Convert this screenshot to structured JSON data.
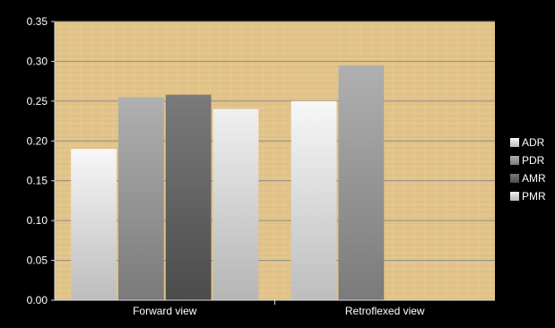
{
  "chart_data": {
    "type": "bar",
    "title": "",
    "xlabel": "",
    "ylabel": "",
    "categories": [
      "Forward view",
      "Retroflexed view"
    ],
    "series": [
      {
        "name": "ADR",
        "values": [
          0.19,
          0.25
        ],
        "color": "#e6e6e6"
      },
      {
        "name": "PDR",
        "values": [
          0.255,
          0.295
        ],
        "color": "#9a9a9a"
      },
      {
        "name": "AMR",
        "values": [
          0.258,
          null
        ],
        "color": "#6e6e6e"
      },
      {
        "name": "PMR",
        "values": [
          0.24,
          null
        ],
        "color": "#dcdcdc"
      }
    ],
    "ylim": [
      0,
      0.35
    ],
    "yticks": [
      "0.00",
      "0.05",
      "0.10",
      "0.15",
      "0.20",
      "0.25",
      "0.30",
      "0.35"
    ],
    "grid": true,
    "legend_position": "right",
    "plot_background": "parchment",
    "colors": {
      "background": "#000000",
      "plot_fill": "#e3c58c",
      "gridline": "#8a8a8a",
      "text": "#ffffff"
    }
  }
}
